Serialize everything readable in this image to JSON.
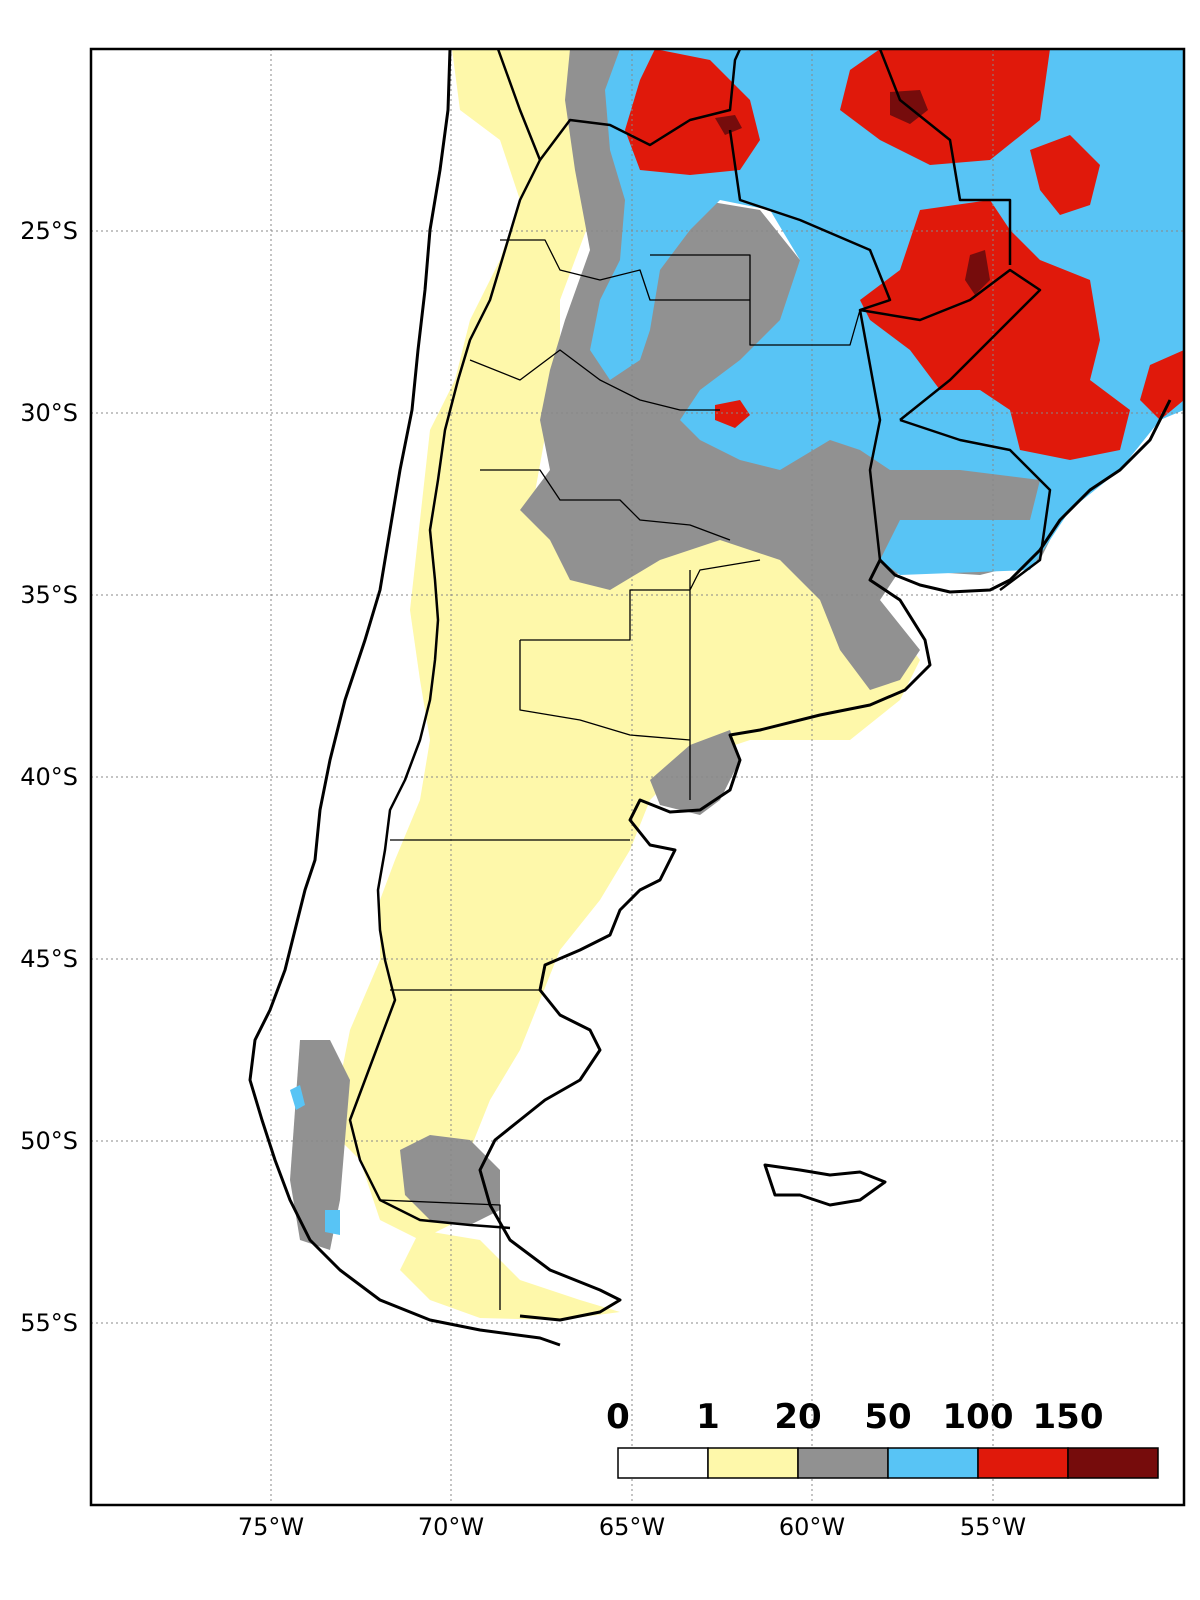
{
  "lon_ticks": [
    "75°W",
    "70°W",
    "65°W",
    "60°W",
    "55°W"
  ],
  "lat_ticks": [
    "25°S",
    "30°S",
    "35°S",
    "40°S",
    "45°S",
    "50°S",
    "55°S"
  ],
  "legend": {
    "labels": [
      "0",
      "1",
      "20",
      "50",
      "100",
      "150"
    ],
    "colors": [
      "#ffffff",
      "#fef8aa",
      "#919191",
      "#58c4f5",
      "#e0190b",
      "#760c0c"
    ]
  },
  "map_extent": {
    "lon": [
      -80,
      -50
    ],
    "lat": [
      -60,
      -20
    ]
  }
}
